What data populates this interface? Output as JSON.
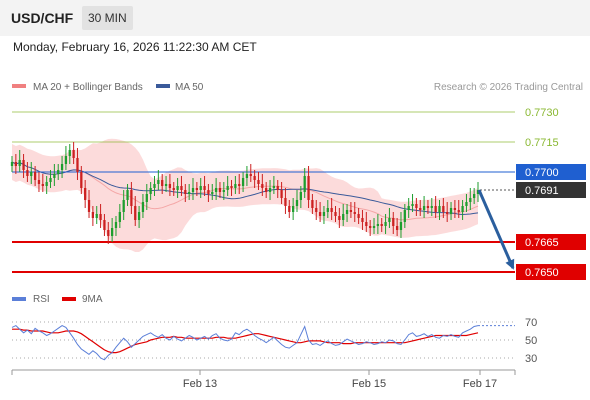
{
  "header": {
    "symbol": "USD/CHF",
    "timeframe": "30 MIN"
  },
  "datetime": "Monday, February 16, 2026 11:22:30 AM CET",
  "legend": {
    "items": [
      {
        "name": "MA 20 + Bollinger Bands",
        "color": "#f08080"
      },
      {
        "name": "MA 50",
        "color": "#3a5a9a"
      }
    ],
    "credit": "Research © 2026 Trading Central"
  },
  "chart_data": [
    {
      "type": "candlestick",
      "ylim": [
        0.764,
        0.7736
      ],
      "levels": [
        {
          "value": 0.773,
          "label": "0.7730",
          "kind": "target",
          "color": "#8ab832"
        },
        {
          "value": 0.7715,
          "label": "0.7715",
          "kind": "target",
          "color": "#8ab832"
        },
        {
          "value": 0.77,
          "label": "0.7700",
          "kind": "pivot",
          "color": "#1f5fd0"
        },
        {
          "value": 0.7665,
          "label": "0.7665",
          "kind": "support",
          "color": "#e00000"
        },
        {
          "value": 0.765,
          "label": "0.7650",
          "kind": "support",
          "color": "#e00000"
        }
      ],
      "last_price": {
        "value": 0.7691,
        "label": "0.7691"
      },
      "closes": [
        0.7705,
        0.7703,
        0.7706,
        0.7701,
        0.7698,
        0.77,
        0.7696,
        0.7694,
        0.7693,
        0.7695,
        0.7697,
        0.7699,
        0.7701,
        0.7704,
        0.7708,
        0.7711,
        0.7707,
        0.77,
        0.7692,
        0.7686,
        0.768,
        0.7677,
        0.7679,
        0.7676,
        0.7671,
        0.7668,
        0.7672,
        0.7675,
        0.768,
        0.7686,
        0.7691,
        0.7683,
        0.7676,
        0.768,
        0.7685,
        0.7689,
        0.7692,
        0.7694,
        0.7696,
        0.7693,
        0.7694,
        0.7692,
        0.7691,
        0.7693,
        0.7691,
        0.7689,
        0.769,
        0.7692,
        0.7691,
        0.7693,
        0.7691,
        0.7689,
        0.769,
        0.7692,
        0.769,
        0.7691,
        0.7693,
        0.7692,
        0.7694,
        0.7693,
        0.7697,
        0.7699,
        0.7698,
        0.7696,
        0.7694,
        0.7692,
        0.769,
        0.7692,
        0.7693,
        0.7691,
        0.7687,
        0.7683,
        0.768,
        0.7683,
        0.7686,
        0.769,
        0.7698,
        0.7686,
        0.7682,
        0.768,
        0.7678,
        0.768,
        0.7682,
        0.768,
        0.7678,
        0.7676,
        0.7679,
        0.7681,
        0.768,
        0.7679,
        0.7677,
        0.7675,
        0.7673,
        0.7672,
        0.7673,
        0.7674,
        0.7673,
        0.7675,
        0.7677,
        0.7673,
        0.7671,
        0.7675,
        0.7681,
        0.7683,
        0.7684,
        0.7682,
        0.7681,
        0.7683,
        0.7682,
        0.7683,
        0.768,
        0.7683,
        0.768,
        0.7679,
        0.7682,
        0.7681,
        0.768,
        0.7683,
        0.7685,
        0.7687,
        0.7689,
        0.7691
      ],
      "projection": {
        "from": 0.7691,
        "to": 0.7652
      }
    },
    {
      "type": "line",
      "series": [
        {
          "name": "RSI",
          "color": "#5b7fd8"
        },
        {
          "name": "9MA",
          "color": "#e00000"
        }
      ],
      "ylim": [
        20,
        80
      ],
      "yticks": [
        "70",
        "50",
        "30"
      ],
      "rsi": [
        64,
        66,
        62,
        58,
        61,
        57,
        63,
        60,
        58,
        55,
        57,
        60,
        63,
        66,
        64,
        58,
        52,
        45,
        40,
        37,
        34,
        38,
        35,
        30,
        28,
        33,
        36,
        42,
        47,
        52,
        48,
        42,
        46,
        50,
        54,
        56,
        58,
        55,
        53,
        56,
        52,
        50,
        54,
        51,
        49,
        52,
        55,
        53,
        50,
        52,
        54,
        51,
        55,
        57,
        52,
        50,
        49,
        51,
        58,
        56,
        60,
        62,
        59,
        55,
        52,
        50,
        47,
        50,
        53,
        49,
        45,
        42,
        41,
        44,
        47,
        56,
        65,
        50,
        45,
        46,
        44,
        47,
        49,
        46,
        44,
        45,
        48,
        51,
        49,
        47,
        45,
        46,
        48,
        47,
        45,
        46,
        48,
        47,
        50,
        49,
        46,
        45,
        50,
        56,
        58,
        54,
        55,
        57,
        54,
        56,
        53,
        52,
        55,
        54,
        56,
        54,
        53,
        58,
        60,
        62,
        65,
        66
      ],
      "ma": [
        62,
        62,
        62,
        61,
        61,
        60,
        60,
        60,
        60,
        59,
        58,
        58,
        58,
        59,
        60,
        60,
        60,
        59,
        57,
        54,
        51,
        48,
        45,
        42,
        39,
        37,
        36,
        36,
        37,
        39,
        41,
        43,
        45,
        46,
        47,
        48,
        50,
        51,
        52,
        53,
        53,
        53,
        54,
        53,
        53,
        52,
        52,
        52,
        52,
        52,
        52,
        52,
        52,
        53,
        53,
        53,
        52,
        52,
        52,
        53,
        54,
        55,
        56,
        57,
        57,
        56,
        55,
        54,
        53,
        52,
        51,
        50,
        49,
        48,
        47,
        47,
        48,
        49,
        49,
        49,
        49,
        48,
        47,
        47,
        47,
        47,
        46,
        46,
        46,
        47,
        47,
        47,
        47,
        47,
        47,
        47,
        47,
        47,
        47,
        47,
        47,
        47,
        47,
        48,
        49,
        50,
        51,
        52,
        53,
        54,
        55,
        55,
        55,
        55,
        55,
        55,
        55,
        55,
        55,
        56,
        57,
        58
      ]
    }
  ],
  "xaxis": {
    "ticks": [
      "Feb 13",
      "Feb 15",
      "Feb 17"
    ]
  }
}
